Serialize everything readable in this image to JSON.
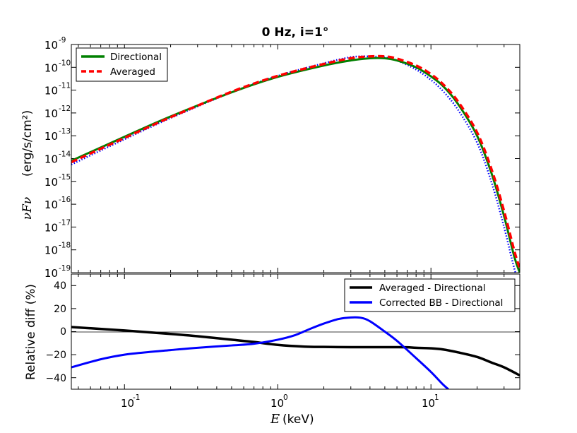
{
  "chart_data": [
    {
      "type": "line",
      "title": "0 Hz, i=1°",
      "xlabel_prefix": "E",
      "xlabel_unit": "(keV)",
      "ylabel_math": "νFν",
      "ylabel_unit": "(erg/s/cm²)",
      "xscale": "log",
      "yscale": "log",
      "xlim": [
        0.045,
        38
      ],
      "ylim": [
        1e-19,
        1e-09
      ],
      "yticks": [
        {
          "exp": "-19",
          "value": 1e-19
        },
        {
          "exp": "-18",
          "value": 1e-18
        },
        {
          "exp": "-17",
          "value": 1e-17
        },
        {
          "exp": "-16",
          "value": 1e-16
        },
        {
          "exp": "-15",
          "value": 1e-15
        },
        {
          "exp": "-14",
          "value": 1e-14
        },
        {
          "exp": "-13",
          "value": 1e-13
        },
        {
          "exp": "-12",
          "value": 1e-12
        },
        {
          "exp": "-11",
          "value": 1e-11
        },
        {
          "exp": "-10",
          "value": 1e-10
        },
        {
          "exp": "-9",
          "value": 1e-09
        }
      ],
      "legend": {
        "placement": "top-left",
        "entries": [
          "Directional",
          "Averaged"
        ]
      },
      "series": [
        {
          "name": "Directional",
          "color": "#008000",
          "style": "solid",
          "x": [
            0.045,
            0.1,
            0.2,
            0.5,
            1,
            2,
            3,
            4,
            5,
            6,
            8,
            10,
            12,
            15,
            20,
            25,
            30,
            35,
            38
          ],
          "y": [
            8e-15,
            9e-14,
            7e-13,
            8e-12,
            3.8e-11,
            1.2e-10,
            2e-10,
            2.5e-10,
            2.5e-10,
            2e-10,
            1e-10,
            4e-11,
            1.5e-11,
            2.5e-12,
            1e-13,
            2e-15,
            3e-17,
            5e-19,
            1e-19
          ]
        },
        {
          "name": "Averaged",
          "color": "#ff0000",
          "style": "dashed",
          "x": [
            0.045,
            0.1,
            0.2,
            0.5,
            1,
            2,
            3,
            4,
            5,
            6,
            8,
            10,
            12,
            15,
            20,
            25,
            30,
            35,
            38
          ],
          "y": [
            7e-15,
            8e-14,
            6.5e-13,
            8.5e-12,
            4.2e-11,
            1.4e-10,
            2.5e-10,
            3e-10,
            3e-10,
            2.4e-10,
            1.2e-10,
            5e-11,
            1.8e-11,
            3.2e-12,
            1.4e-13,
            3e-15,
            5e-17,
            9e-19,
            1.5e-19
          ]
        },
        {
          "name": "Corrected BB",
          "color": "#0000ff",
          "style": "dotted",
          "x": [
            0.045,
            0.1,
            0.2,
            0.5,
            1,
            2,
            3,
            4,
            5,
            6,
            8,
            10,
            12,
            15,
            20,
            25,
            30,
            35,
            38
          ],
          "y": [
            5.5e-15,
            7e-14,
            6e-13,
            8e-12,
            4.2e-11,
            1.5e-10,
            2.8e-10,
            3e-10,
            2.7e-10,
            2e-10,
            8e-11,
            2.8e-11,
            9e-12,
            1.4e-12,
            5e-14,
            8e-16,
            1e-17,
            1.5e-19,
            3e-20
          ]
        }
      ]
    },
    {
      "type": "line",
      "ylabel": "Relative diff (%)",
      "xscale": "log",
      "xlim": [
        0.045,
        38
      ],
      "ylim": [
        -50,
        50
      ],
      "yticks": [
        "40",
        "20",
        "0",
        "−20",
        "−40"
      ],
      "xticks": [
        {
          "exp": "-1",
          "value": 0.1
        },
        {
          "exp": "0",
          "value": 1
        },
        {
          "exp": "1",
          "value": 10
        }
      ],
      "legend": {
        "placement": "top-right",
        "entries": [
          "Averaged - Directional",
          "Corrected BB - Directional"
        ]
      },
      "series": [
        {
          "name": "Averaged - Directional",
          "color": "#000000",
          "x": [
            0.045,
            0.1,
            0.2,
            0.3,
            0.5,
            0.7,
            1,
            1.5,
            2,
            3,
            4,
            5,
            6,
            7,
            8,
            10,
            12,
            15,
            20,
            25,
            30,
            38
          ],
          "y": [
            4,
            1,
            -2,
            -4,
            -7,
            -9,
            -11.5,
            -13,
            -13.3,
            -13.5,
            -13.5,
            -13.5,
            -13.5,
            -13.6,
            -14,
            -14.5,
            -15.5,
            -18,
            -22,
            -27,
            -31,
            -38
          ]
        },
        {
          "name": "Corrected BB - Directional",
          "color": "#0000ff",
          "x": [
            0.045,
            0.07,
            0.1,
            0.15,
            0.2,
            0.3,
            0.5,
            0.7,
            1,
            1.3,
            1.6,
            2,
            2.5,
            3,
            3.5,
            4,
            5,
            6,
            8,
            10,
            12,
            13
          ],
          "y": [
            -31,
            -24,
            -20,
            -17.5,
            -16,
            -14,
            -12,
            -10.5,
            -7,
            -3,
            2,
            7,
            11,
            12.3,
            12,
            9,
            0,
            -8,
            -23,
            -35,
            -46,
            -50
          ]
        }
      ]
    }
  ]
}
